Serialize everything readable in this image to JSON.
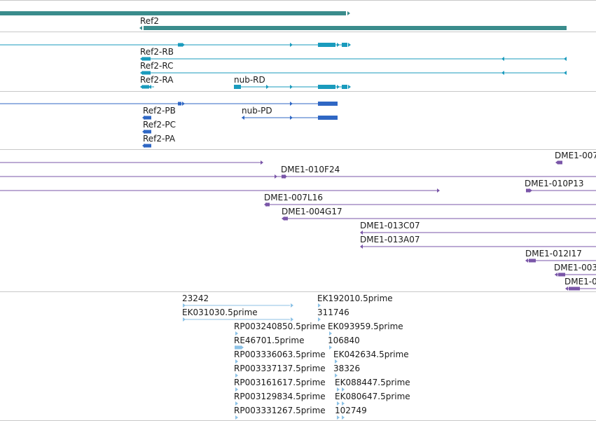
{
  "colors": {
    "gene": "#3a8c8c",
    "transcript": "#1a9bbd",
    "protein": "#2f67c4",
    "clone": "#7a56a8",
    "est": "#8cc2e6",
    "divider": "#c8c8c8"
  },
  "tracks": {
    "genes": {
      "labels": [
        "Ref2"
      ]
    },
    "transcripts": {
      "labels": [
        "Ref2-RB",
        "Ref2-RC",
        "Ref2-RA",
        "nub-RD"
      ]
    },
    "proteins": {
      "labels": [
        "Ref2-PB",
        "nub-PD",
        "Ref2-PC",
        "Ref2-PA"
      ]
    },
    "clones": {
      "labels": [
        "DME1-007",
        "DME1-010F24",
        "DME1-010P13",
        "DME1-007L16",
        "DME1-004G17",
        "DME1-013C07",
        "DME1-013A07",
        "DME1-012I17",
        "DME1-003",
        "DME1-0"
      ]
    },
    "ests": {
      "labels": [
        "23242",
        "EK192010.5prime",
        "EK031030.5prime",
        "311746",
        "RP003240850.5prime",
        "EK093959.5prime",
        "RE46701.5prime",
        "106840",
        "RP003336063.5prime",
        "EK042634.5prime",
        "RP003337137.5prime",
        "38326",
        "RP003161617.5prime",
        "EK088447.5prime",
        "RP003129834.5prime",
        "EK080647.5prime",
        "RP003331267.5prime",
        "102749"
      ]
    }
  }
}
